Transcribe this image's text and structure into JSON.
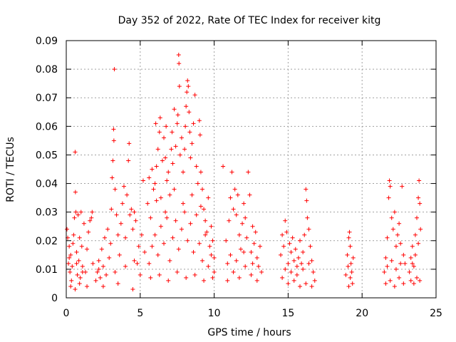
{
  "chart_data": {
    "type": "scatter",
    "title": "Day 352 of 2022, Rate Of TEC Index for receiver kitg",
    "xlabel": "GPS time / hours",
    "ylabel": "ROTI / TECUs",
    "xlim": [
      0,
      25
    ],
    "ylim": [
      0,
      0.09
    ],
    "xticks": [
      0,
      5,
      10,
      15,
      20,
      25
    ],
    "xtick_labels": [
      "0",
      "5",
      "10",
      "15",
      "20",
      "25"
    ],
    "yticks": [
      0,
      0.01,
      0.02,
      0.03,
      0.04,
      0.05,
      0.06,
      0.07,
      0.08,
      0.09
    ],
    "ytick_labels": [
      "0",
      "0.01",
      "0.02",
      "0.03",
      "0.04",
      "0.05",
      "0.06",
      "0.07",
      "0.08",
      "0.09"
    ],
    "grid": true,
    "marker": "+",
    "series": [
      {
        "name": "ROTI",
        "color": "#ff0000",
        "points": [
          [
            0.05,
            0.024
          ],
          [
            0.1,
            0.021
          ],
          [
            0.15,
            0.012
          ],
          [
            0.2,
            0.018
          ],
          [
            0.25,
            0.009
          ],
          [
            0.3,
            0.015
          ],
          [
            0.35,
            0.006
          ],
          [
            0.4,
            0.011
          ],
          [
            0.45,
            0.019
          ],
          [
            0.5,
            0.022
          ],
          [
            0.55,
            0.028
          ],
          [
            0.6,
            0.051
          ],
          [
            0.62,
            0.037
          ],
          [
            0.65,
            0.03
          ],
          [
            0.7,
            0.016
          ],
          [
            0.75,
            0.008
          ],
          [
            0.8,
            0.029
          ],
          [
            0.85,
            0.013
          ],
          [
            0.9,
            0.021
          ],
          [
            0.95,
            0.007
          ],
          [
            1.0,
            0.03
          ],
          [
            1.05,
            0.018
          ],
          [
            1.1,
            0.011
          ],
          [
            1.2,
            0.026
          ],
          [
            1.3,
            0.009
          ],
          [
            1.4,
            0.017
          ],
          [
            1.5,
            0.023
          ],
          [
            1.6,
            0.027
          ],
          [
            1.7,
            0.028
          ],
          [
            1.75,
            0.03
          ],
          [
            1.8,
            0.012
          ],
          [
            0.3,
            0.004
          ],
          [
            0.6,
            0.003
          ],
          [
            0.9,
            0.005
          ],
          [
            1.4,
            0.004
          ],
          [
            0.2,
            0.014
          ],
          [
            0.7,
            0.012
          ],
          [
            1.1,
            0.009
          ],
          [
            2.0,
            0.006
          ],
          [
            2.1,
            0.009
          ],
          [
            2.2,
            0.013
          ],
          [
            2.3,
            0.007
          ],
          [
            2.4,
            0.017
          ],
          [
            2.5,
            0.011
          ],
          [
            2.6,
            0.021
          ],
          [
            2.7,
            0.008
          ],
          [
            2.8,
            0.024
          ],
          [
            2.9,
            0.014
          ],
          [
            3.0,
            0.019
          ],
          [
            3.05,
            0.031
          ],
          [
            3.1,
            0.042
          ],
          [
            3.15,
            0.048
          ],
          [
            3.2,
            0.059
          ],
          [
            3.22,
            0.055
          ],
          [
            3.25,
            0.08
          ],
          [
            3.3,
            0.038
          ],
          [
            3.4,
            0.029
          ],
          [
            3.5,
            0.022
          ],
          [
            3.6,
            0.015
          ],
          [
            3.7,
            0.026
          ],
          [
            3.8,
            0.033
          ],
          [
            3.9,
            0.039
          ],
          [
            4.0,
            0.021
          ],
          [
            4.1,
            0.036
          ],
          [
            4.2,
            0.048
          ],
          [
            4.25,
            0.054
          ],
          [
            4.3,
            0.029
          ],
          [
            4.4,
            0.031
          ],
          [
            4.5,
            0.024
          ],
          [
            4.6,
            0.03
          ],
          [
            4.7,
            0.027
          ],
          [
            4.8,
            0.012
          ],
          [
            4.9,
            0.018
          ],
          [
            5.0,
            0.008
          ],
          [
            5.1,
            0.022
          ],
          [
            5.2,
            0.041
          ],
          [
            5.3,
            0.016
          ],
          [
            2.5,
            0.004
          ],
          [
            3.5,
            0.005
          ],
          [
            4.5,
            0.003
          ],
          [
            2.2,
            0.01
          ],
          [
            3.3,
            0.009
          ],
          [
            4.0,
            0.011
          ],
          [
            4.6,
            0.013
          ],
          [
            5.5,
            0.033
          ],
          [
            5.6,
            0.042
          ],
          [
            5.7,
            0.028
          ],
          [
            5.8,
            0.045
          ],
          [
            5.9,
            0.038
          ],
          [
            6.0,
            0.04
          ],
          [
            6.05,
            0.061
          ],
          [
            6.1,
            0.046
          ],
          [
            6.2,
            0.052
          ],
          [
            6.3,
            0.058
          ],
          [
            6.35,
            0.063
          ],
          [
            6.4,
            0.035
          ],
          [
            6.5,
            0.048
          ],
          [
            6.6,
            0.056
          ],
          [
            6.7,
            0.049
          ],
          [
            6.75,
            0.06
          ],
          [
            6.8,
            0.041
          ],
          [
            6.9,
            0.044
          ],
          [
            7.0,
            0.036
          ],
          [
            7.1,
            0.052
          ],
          [
            7.15,
            0.058
          ],
          [
            7.2,
            0.047
          ],
          [
            7.3,
            0.066
          ],
          [
            7.4,
            0.053
          ],
          [
            7.5,
            0.061
          ],
          [
            7.55,
            0.064
          ],
          [
            7.6,
            0.085
          ],
          [
            7.62,
            0.082
          ],
          [
            7.65,
            0.074
          ],
          [
            7.7,
            0.05
          ],
          [
            7.8,
            0.056
          ],
          [
            7.9,
            0.044
          ],
          [
            8.0,
            0.052
          ],
          [
            8.05,
            0.06
          ],
          [
            8.1,
            0.067
          ],
          [
            8.15,
            0.072
          ],
          [
            8.2,
            0.076
          ],
          [
            8.25,
            0.074
          ],
          [
            8.3,
            0.065
          ],
          [
            8.35,
            0.058
          ],
          [
            8.4,
            0.049
          ],
          [
            8.5,
            0.054
          ],
          [
            8.6,
            0.061
          ],
          [
            8.7,
            0.071
          ],
          [
            8.8,
            0.046
          ],
          [
            8.9,
            0.04
          ],
          [
            9.0,
            0.062
          ],
          [
            9.05,
            0.057
          ],
          [
            9.1,
            0.044
          ],
          [
            9.2,
            0.038
          ],
          [
            9.3,
            0.031
          ],
          [
            9.4,
            0.027
          ],
          [
            9.5,
            0.023
          ],
          [
            9.6,
            0.035
          ],
          [
            9.7,
            0.018
          ],
          [
            9.8,
            0.025
          ],
          [
            9.9,
            0.02
          ],
          [
            10.0,
            0.014
          ],
          [
            5.6,
            0.012
          ],
          [
            5.8,
            0.018
          ],
          [
            6.0,
            0.022
          ],
          [
            6.2,
            0.015
          ],
          [
            6.4,
            0.025
          ],
          [
            6.6,
            0.019
          ],
          [
            6.8,
            0.028
          ],
          [
            7.0,
            0.013
          ],
          [
            7.2,
            0.021
          ],
          [
            7.4,
            0.027
          ],
          [
            7.6,
            0.017
          ],
          [
            7.8,
            0.024
          ],
          [
            8.0,
            0.03
          ],
          [
            8.2,
            0.02
          ],
          [
            8.4,
            0.026
          ],
          [
            8.6,
            0.016
          ],
          [
            8.8,
            0.029
          ],
          [
            9.0,
            0.019
          ],
          [
            9.2,
            0.013
          ],
          [
            9.4,
            0.022
          ],
          [
            9.6,
            0.011
          ],
          [
            9.8,
            0.015
          ],
          [
            10.0,
            0.009
          ],
          [
            5.7,
            0.007
          ],
          [
            6.3,
            0.008
          ],
          [
            6.9,
            0.006
          ],
          [
            7.5,
            0.009
          ],
          [
            8.1,
            0.007
          ],
          [
            8.7,
            0.008
          ],
          [
            9.3,
            0.006
          ],
          [
            9.9,
            0.007
          ],
          [
            6.1,
            0.034
          ],
          [
            6.7,
            0.03
          ],
          [
            7.3,
            0.038
          ],
          [
            7.9,
            0.033
          ],
          [
            8.5,
            0.036
          ],
          [
            9.1,
            0.032
          ],
          [
            10.6,
            0.046
          ],
          [
            10.8,
            0.02
          ],
          [
            10.9,
            0.012
          ],
          [
            11.0,
            0.027
          ],
          [
            11.1,
            0.035
          ],
          [
            11.2,
            0.044
          ],
          [
            11.3,
            0.031
          ],
          [
            11.4,
            0.038
          ],
          [
            11.5,
            0.029
          ],
          [
            11.6,
            0.036
          ],
          [
            11.7,
            0.022
          ],
          [
            11.8,
            0.017
          ],
          [
            11.9,
            0.026
          ],
          [
            12.0,
            0.033
          ],
          [
            12.1,
            0.028
          ],
          [
            12.2,
            0.021
          ],
          [
            12.3,
            0.044
          ],
          [
            12.4,
            0.036
          ],
          [
            12.5,
            0.016
          ],
          [
            12.6,
            0.025
          ],
          [
            12.7,
            0.019
          ],
          [
            12.8,
            0.023
          ],
          [
            12.9,
            0.014
          ],
          [
            13.0,
            0.011
          ],
          [
            13.1,
            0.018
          ],
          [
            13.2,
            0.009
          ],
          [
            10.9,
            0.006
          ],
          [
            11.3,
            0.009
          ],
          [
            11.7,
            0.007
          ],
          [
            12.1,
            0.011
          ],
          [
            12.5,
            0.008
          ],
          [
            12.9,
            0.006
          ],
          [
            11.1,
            0.015
          ],
          [
            11.5,
            0.013
          ],
          [
            12.0,
            0.016
          ],
          [
            12.6,
            0.012
          ],
          [
            14.5,
            0.015
          ],
          [
            14.6,
            0.022
          ],
          [
            14.7,
            0.018
          ],
          [
            14.8,
            0.027
          ],
          [
            14.9,
            0.023
          ],
          [
            15.0,
            0.012
          ],
          [
            15.1,
            0.019
          ],
          [
            15.2,
            0.016
          ],
          [
            15.3,
            0.021
          ],
          [
            15.4,
            0.013
          ],
          [
            15.5,
            0.017
          ],
          [
            15.6,
            0.011
          ],
          [
            15.7,
            0.014
          ],
          [
            15.8,
            0.02
          ],
          [
            15.9,
            0.012
          ],
          [
            16.0,
            0.016
          ],
          [
            16.1,
            0.022
          ],
          [
            16.2,
            0.038
          ],
          [
            16.25,
            0.034
          ],
          [
            16.3,
            0.028
          ],
          [
            16.4,
            0.024
          ],
          [
            16.5,
            0.018
          ],
          [
            16.6,
            0.013
          ],
          [
            16.7,
            0.009
          ],
          [
            16.8,
            0.006
          ],
          [
            14.6,
            0.007
          ],
          [
            15.0,
            0.005
          ],
          [
            15.4,
            0.006
          ],
          [
            15.8,
            0.004
          ],
          [
            16.2,
            0.005
          ],
          [
            16.6,
            0.004
          ],
          [
            14.8,
            0.01
          ],
          [
            15.2,
            0.009
          ],
          [
            15.6,
            0.008
          ],
          [
            16.0,
            0.01
          ],
          [
            16.4,
            0.012
          ],
          [
            18.9,
            0.008
          ],
          [
            19.0,
            0.015
          ],
          [
            19.1,
            0.021
          ],
          [
            19.15,
            0.023
          ],
          [
            19.2,
            0.018
          ],
          [
            19.25,
            0.012
          ],
          [
            19.3,
            0.009
          ],
          [
            19.35,
            0.005
          ],
          [
            19.4,
            0.014
          ],
          [
            19.1,
            0.004
          ],
          [
            19.2,
            0.007
          ],
          [
            19.05,
            0.011
          ],
          [
            21.5,
            0.009
          ],
          [
            21.6,
            0.014
          ],
          [
            21.7,
            0.021
          ],
          [
            21.8,
            0.035
          ],
          [
            21.85,
            0.041
          ],
          [
            21.9,
            0.039
          ],
          [
            22.0,
            0.028
          ],
          [
            22.1,
            0.024
          ],
          [
            22.2,
            0.03
          ],
          [
            22.3,
            0.018
          ],
          [
            22.4,
            0.022
          ],
          [
            22.5,
            0.026
          ],
          [
            22.6,
            0.019
          ],
          [
            22.7,
            0.039
          ],
          [
            22.8,
            0.015
          ],
          [
            22.9,
            0.012
          ],
          [
            21.6,
            0.005
          ],
          [
            21.9,
            0.006
          ],
          [
            22.2,
            0.004
          ],
          [
            22.5,
            0.007
          ],
          [
            22.8,
            0.005
          ],
          [
            21.7,
            0.011
          ],
          [
            22.0,
            0.013
          ],
          [
            22.3,
            0.01
          ],
          [
            22.6,
            0.012
          ],
          [
            23.2,
            0.009
          ],
          [
            23.3,
            0.014
          ],
          [
            23.4,
            0.018
          ],
          [
            23.5,
            0.011
          ],
          [
            23.6,
            0.022
          ],
          [
            23.7,
            0.028
          ],
          [
            23.8,
            0.035
          ],
          [
            23.85,
            0.041
          ],
          [
            23.9,
            0.033
          ],
          [
            23.95,
            0.024
          ],
          [
            23.3,
            0.006
          ],
          [
            23.5,
            0.005
          ],
          [
            23.7,
            0.007
          ],
          [
            23.9,
            0.006
          ],
          [
            23.4,
            0.012
          ],
          [
            23.6,
            0.015
          ],
          [
            23.8,
            0.019
          ]
        ]
      }
    ]
  }
}
